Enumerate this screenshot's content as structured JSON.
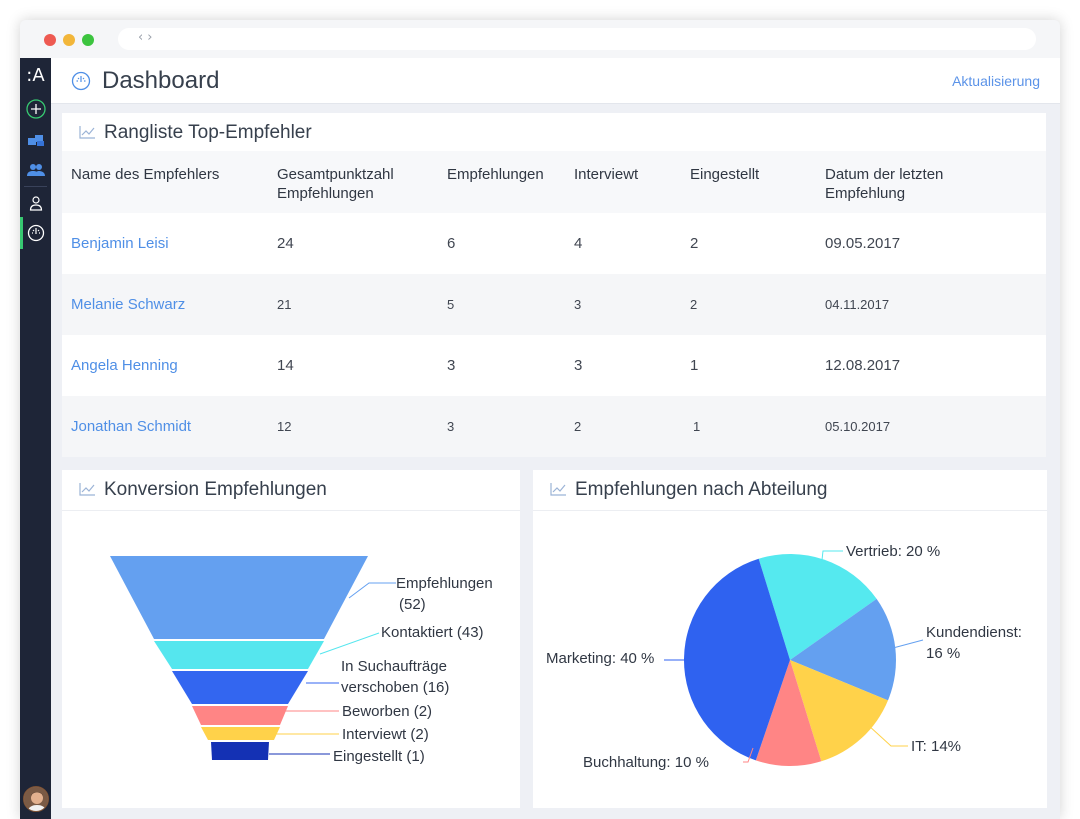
{
  "header": {
    "title": "Dashboard",
    "refresh_label": "Aktualisierung"
  },
  "sidebar": {
    "logo": ":A"
  },
  "ranking": {
    "title": "Rangliste Top-Empfehler",
    "columns": [
      "Name des Empfehlers",
      "Gesamtpunktzahl Empfehlungen",
      "Empfehlungen",
      "Interviewt",
      "Eingestellt",
      "Datum der letzten Empfehlung"
    ],
    "columns_lines": [
      [
        "Name des Empfehlers"
      ],
      [
        "Gesamtpunktzahl",
        "Empfehlungen"
      ],
      [
        "Empfehlungen"
      ],
      [
        "Interviewt"
      ],
      [
        "Eingestellt"
      ],
      [
        "Datum der letzten",
        "Empfehlung"
      ]
    ],
    "rows": [
      {
        "name": "Benjamin Leisi",
        "score": "24",
        "referrals": "6",
        "interviewed": "4",
        "hired": "2",
        "date": "09.05.2017"
      },
      {
        "name": "Melanie Schwarz",
        "score": "21",
        "referrals": "5",
        "interviewed": "3",
        "hired": "2",
        "date": "04.11.2017"
      },
      {
        "name": "Angela Henning",
        "score": "14",
        "referrals": "3",
        "interviewed": "3",
        "hired": "1",
        "date": "12.08.2017"
      },
      {
        "name": "Jonathan Schmidt",
        "score": "12",
        "referrals": "3",
        "interviewed": "2",
        "hired": "1",
        "date": "05.10.2017"
      }
    ]
  },
  "funnel": {
    "title": "Konversion Empfehlungen",
    "label_empfehlungen_1": "Empfehlungen",
    "label_empfehlungen_2": "(52)",
    "label_kontaktiert": "Kontaktiert (43)",
    "label_such_1": "In Suchaufträge",
    "label_such_2": "verschoben (16)",
    "label_beworben": "Beworben (2)",
    "label_interviewt": "Interviewt (2)",
    "label_eingestellt": "Eingestellt (1)"
  },
  "pie": {
    "title": "Empfehlungen nach Abteilung",
    "label_vertrieb": "Vertrieb: 20 %",
    "label_kundendienst_1": "Kundendienst:",
    "label_kundendienst_2": "16 %",
    "label_it": "IT: 14%",
    "label_buchhaltung": "Buchhaltung: 10 %",
    "label_marketing": "Marketing: 40 %"
  },
  "chart_data": [
    {
      "type": "funnel",
      "title": "Konversion Empfehlungen",
      "categories": [
        "Empfehlungen",
        "Kontaktiert",
        "In Suchaufträge verschoben",
        "Beworben",
        "Interviewt",
        "Eingestellt"
      ],
      "values": [
        52,
        43,
        16,
        2,
        2,
        1
      ],
      "colors": [
        "#64a0f0",
        "#55e6ee",
        "#3366f0",
        "#ff8585",
        "#ffd24a",
        "#1431b4"
      ]
    },
    {
      "type": "pie",
      "title": "Empfehlungen nach Abteilung",
      "categories": [
        "Vertrieb",
        "Kundendienst",
        "IT",
        "Buchhaltung",
        "Marketing"
      ],
      "values": [
        20,
        16,
        14,
        10,
        40
      ],
      "colors": [
        "#55e9ef",
        "#64a0f0",
        "#ffd24a",
        "#ff8585",
        "#2f62f0"
      ]
    }
  ]
}
